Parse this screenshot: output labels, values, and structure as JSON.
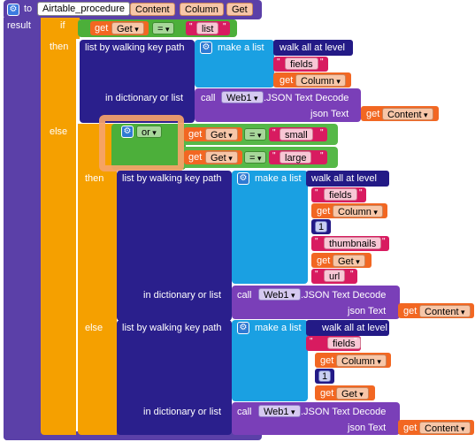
{
  "procedure": {
    "to": "to",
    "name": "Airtable_procedure",
    "params": [
      "Content",
      "Column",
      "Get"
    ],
    "result": "result"
  },
  "if_block": {
    "if": "if",
    "then": "then",
    "else": "else"
  },
  "top_cond": {
    "get": "get",
    "var": "Get",
    "op": "=",
    "text": "list"
  },
  "walk1": {
    "title": "list by walking key path",
    "make_list": "make a list",
    "walk_all": "walk all at level",
    "fields": "fields",
    "get": "get",
    "column": "Column",
    "in_dict": "in dictionary or list",
    "call": "call",
    "web": "Web1",
    "json_decode": ".JSON Text Decode",
    "json_text": "json Text",
    "content": "Content"
  },
  "or_block": {
    "op": "or",
    "get": "get",
    "var": "Get",
    "eq": "=",
    "small": "small",
    "large": "large"
  },
  "inner_if": {
    "then": "then",
    "else": "else"
  },
  "walk2": {
    "title": "list by walking key path",
    "make_list": "make a list",
    "walk_all": "walk all at level",
    "fields": "fields",
    "get": "get",
    "column": "Column",
    "one": "1",
    "thumbnails": "thumbnails",
    "get_var": "Get",
    "url": "url",
    "in_dict": "in dictionary or list",
    "call": "call",
    "web": "Web1",
    "json_decode": ".JSON Text Decode",
    "json_text": "json Text",
    "content": "Content"
  },
  "walk3": {
    "title": "list by walking key path",
    "make_list": "make a list",
    "walk_all": "walk all at level",
    "fields": "fields",
    "get": "get",
    "column": "Column",
    "one": "1",
    "get_var": "Get",
    "in_dict": "in dictionary or list",
    "call": "call",
    "web": "Web1",
    "json_decode": ".JSON Text Decode",
    "json_text": "json Text",
    "content": "Content"
  },
  "colors": {
    "procedure": "#5b40a8",
    "control": "#f5a000",
    "logic": "#4caf3a",
    "dictionary": "#2a1f8c",
    "list": "#1aa0e2",
    "text": "#d81b60",
    "variable": "#f26722",
    "component": "#7a3fb8",
    "highlight": "#f5a36a"
  },
  "icons": [
    "gear-icon",
    "mutator-gear-icon"
  ]
}
